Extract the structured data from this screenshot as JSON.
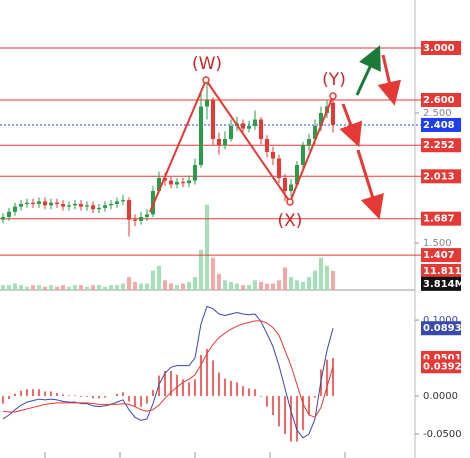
{
  "chart_data": [
    {
      "type": "candlestick",
      "open": [
        1.68,
        1.7,
        1.74,
        1.78,
        1.8,
        1.81,
        1.8,
        1.82,
        1.79,
        1.81,
        1.8,
        1.78,
        1.79,
        1.8,
        1.78,
        1.79,
        1.76,
        1.77,
        1.79,
        1.8,
        1.82,
        1.83,
        1.68,
        1.67,
        1.7,
        1.72,
        1.9,
        2.0,
        1.98,
        1.95,
        1.97,
        1.96,
        1.98,
        2.1,
        2.55,
        2.6,
        2.3,
        2.25,
        2.3,
        2.4,
        2.42,
        2.38,
        2.4,
        2.45,
        2.3,
        2.2,
        2.15,
        2.0,
        1.9,
        1.95,
        2.1,
        2.25,
        2.3,
        2.4,
        2.5,
        2.58
      ],
      "high": [
        1.73,
        1.77,
        1.81,
        1.83,
        1.84,
        1.84,
        1.85,
        1.85,
        1.84,
        1.84,
        1.83,
        1.82,
        1.83,
        1.83,
        1.82,
        1.82,
        1.8,
        1.82,
        1.83,
        1.85,
        1.87,
        1.85,
        1.72,
        1.74,
        1.76,
        1.94,
        2.05,
        2.04,
        2.01,
        2.0,
        2.0,
        2.02,
        2.15,
        2.65,
        2.75,
        2.62,
        2.35,
        2.36,
        2.45,
        2.47,
        2.45,
        2.44,
        2.52,
        2.47,
        2.33,
        2.24,
        2.18,
        2.03,
        1.99,
        2.13,
        2.28,
        2.34,
        2.45,
        2.55,
        2.6,
        2.63
      ],
      "low": [
        1.65,
        1.67,
        1.71,
        1.75,
        1.77,
        1.77,
        1.77,
        1.76,
        1.76,
        1.77,
        1.75,
        1.75,
        1.76,
        1.75,
        1.75,
        1.73,
        1.73,
        1.74,
        1.76,
        1.77,
        1.79,
        1.55,
        1.63,
        1.64,
        1.67,
        1.7,
        1.88,
        1.94,
        1.92,
        1.92,
        1.93,
        1.93,
        1.95,
        2.08,
        2.45,
        2.25,
        2.18,
        2.22,
        2.28,
        2.36,
        2.34,
        2.35,
        2.37,
        2.26,
        2.16,
        2.1,
        1.96,
        1.82,
        1.86,
        1.93,
        2.07,
        2.21,
        2.26,
        2.36,
        2.46,
        2.35
      ],
      "close": [
        1.7,
        1.74,
        1.78,
        1.8,
        1.81,
        1.8,
        1.82,
        1.79,
        1.81,
        1.8,
        1.78,
        1.79,
        1.8,
        1.78,
        1.79,
        1.76,
        1.77,
        1.79,
        1.8,
        1.82,
        1.83,
        1.68,
        1.67,
        1.7,
        1.72,
        1.9,
        2.0,
        1.98,
        1.95,
        1.97,
        1.96,
        1.98,
        2.1,
        2.55,
        2.6,
        2.3,
        2.25,
        2.3,
        2.4,
        2.42,
        2.38,
        2.4,
        2.45,
        2.3,
        2.2,
        2.15,
        2.0,
        1.9,
        1.95,
        2.1,
        2.25,
        2.3,
        2.4,
        2.5,
        2.55,
        2.408
      ],
      "volume": [
        3,
        3,
        4,
        3,
        2,
        3,
        3,
        2,
        3,
        2,
        3,
        2,
        3,
        3,
        2,
        3,
        3,
        2,
        3,
        3,
        4,
        8,
        5,
        4,
        4,
        12,
        15,
        6,
        4,
        3,
        4,
        5,
        8,
        25,
        53,
        20,
        10,
        6,
        5,
        4,
        3,
        3,
        6,
        5,
        4,
        4,
        6,
        14,
        8,
        6,
        5,
        8,
        12,
        20,
        15,
        11.811
      ],
      "volume_value_labels": [
        "11.811M"
      ],
      "volume_ma": {
        "value": 3.814,
        "label": "3.814M"
      },
      "volume_lim": [
        0,
        180
      ],
      "up_color": "#2e9b4a",
      "down_color": "#e53935",
      "volume_up_color": "#a5dfb7",
      "volume_down_color": "#f4a9a9",
      "ylim": [
        1.177,
        3.369
      ],
      "yticks": [
        {
          "value": 2.5,
          "label": "2.500"
        },
        {
          "value": 1.5,
          "label": "1.500"
        }
      ],
      "levels": [
        {
          "value": 3,
          "label": "3.000"
        },
        {
          "value": 2.6,
          "label": "2.600"
        },
        2.252,
        2.013,
        1.687,
        1.407
      ],
      "level_color": "#e53935",
      "last_price": 2.408,
      "last_price_color": "#1e3ff0",
      "annotations": [
        "(W)",
        "(X)",
        "(Y)"
      ]
    },
    {
      "type": "line",
      "series": [
        {
          "color": "#3949ab",
          "values": [
            -0.03,
            -0.025,
            -0.018,
            -0.012,
            -0.008,
            -0.006,
            -0.004,
            -0.005,
            -0.004,
            -0.005,
            -0.007,
            -0.008,
            -0.008,
            -0.01,
            -0.01,
            -0.013,
            -0.014,
            -0.013,
            -0.011,
            -0.008,
            -0.005,
            -0.018,
            -0.028,
            -0.032,
            -0.03,
            -0.01,
            0.015,
            0.03,
            0.038,
            0.04,
            0.04,
            0.04,
            0.05,
            0.095,
            0.118,
            0.115,
            0.108,
            0.106,
            0.108,
            0.11,
            0.108,
            0.107,
            0.108,
            0.098,
            0.082,
            0.065,
            0.04,
            0.01,
            -0.02,
            -0.045,
            -0.055,
            -0.05,
            -0.03,
            0.02,
            0.06,
            0.0893
          ]
        },
        {
          "color": "#e53935",
          "values": [
            -0.02,
            -0.021,
            -0.021,
            -0.019,
            -0.017,
            -0.015,
            -0.013,
            -0.011,
            -0.01,
            -0.009,
            -0.009,
            -0.009,
            -0.009,
            -0.009,
            -0.009,
            -0.01,
            -0.011,
            -0.011,
            -0.011,
            -0.011,
            -0.01,
            -0.011,
            -0.014,
            -0.018,
            -0.02,
            -0.018,
            -0.012,
            -0.003,
            0.005,
            0.012,
            0.018,
            0.022,
            0.028,
            0.041,
            0.056,
            0.068,
            0.077,
            0.083,
            0.088,
            0.092,
            0.095,
            0.097,
            0.099,
            0.099,
            0.096,
            0.09,
            0.08,
            0.06,
            0.04,
            0.015,
            -0.01,
            -0.025,
            -0.028,
            -0.015,
            0.012,
            0.0392
          ]
        }
      ],
      "histogram": {
        "color": "#e53935",
        "values": [
          -0.01,
          -0.004,
          0.003,
          0.007,
          0.009,
          0.009,
          0.009,
          0.006,
          0.006,
          0.004,
          0.002,
          0.001,
          0.001,
          -0.001,
          -0.001,
          -0.003,
          -0.003,
          -0.002,
          0.0,
          0.003,
          0.005,
          -0.007,
          -0.014,
          -0.014,
          -0.01,
          0.008,
          0.027,
          0.033,
          0.033,
          0.028,
          0.022,
          0.018,
          0.022,
          0.054,
          0.062,
          0.047,
          0.031,
          0.023,
          0.02,
          0.018,
          0.013,
          0.01,
          0.009,
          -0.001,
          -0.014,
          -0.025,
          -0.04,
          -0.05,
          -0.06,
          -0.06,
          -0.045,
          -0.025,
          -0.002,
          0.035,
          0.048,
          0.0501
        ]
      },
      "ylim": [
        -0.0816,
        0.137
      ],
      "yticks": [
        {
          "value": 0.1,
          "label": "0.1000"
        },
        {
          "value": 0,
          "label": "0.0000"
        },
        {
          "value": -0.05,
          "label": "-0.0500"
        }
      ]
    }
  ]
}
